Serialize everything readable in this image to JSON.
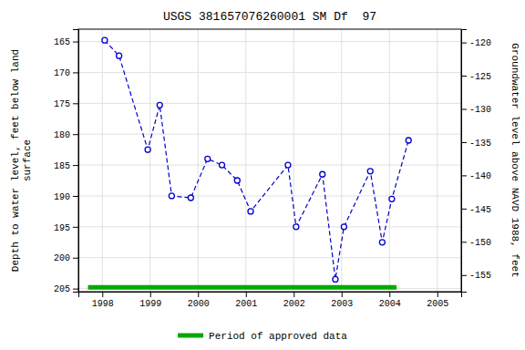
{
  "chart_data": {
    "type": "line",
    "title": "USGS 381657076260001 SM Df  97",
    "y_label": "Depth to water level, feet below land\nsurface",
    "y2_label": "Groundwater level above NAVD 1988, feet",
    "x": [
      1998.05,
      1998.35,
      1998.95,
      1999.2,
      1999.45,
      1999.85,
      2000.2,
      2000.5,
      2000.82,
      2001.1,
      2001.88,
      2002.05,
      2002.6,
      2002.87,
      2003.05,
      2003.6,
      2003.85,
      2004.05,
      2004.4
    ],
    "series": [
      {
        "values": [
          164.8,
          167.3,
          182.5,
          175.3,
          190.0,
          190.3,
          184.0,
          185.0,
          187.5,
          192.5,
          185.0,
          195.0,
          186.5,
          203.5,
          195.0,
          186.0,
          197.5,
          190.5,
          181.0
        ],
        "color": "#0000cc",
        "marker": "circle",
        "line_style": "dashed"
      },
      {
        "name": "Period of approved data",
        "type": "segment",
        "color": "#00aa00",
        "x": [
          1997.7,
          2004.15
        ],
        "values": [
          204.8,
          204.8
        ],
        "line_style": "solid"
      }
    ],
    "xlim": [
      1997.5,
      2005.5
    ],
    "xticks": [
      1998,
      1999,
      2000,
      2001,
      2002,
      2003,
      2004,
      2005
    ],
    "ylim": [
      205.5,
      163.0
    ],
    "yticks": [
      165,
      170,
      175,
      180,
      185,
      190,
      195,
      200,
      205
    ],
    "y2lim": [
      -157.5,
      -118.0
    ],
    "y2ticks": [
      -120,
      -125,
      -130,
      -135,
      -140,
      -145,
      -150,
      -155
    ],
    "grid": true,
    "legend": "bottom"
  }
}
